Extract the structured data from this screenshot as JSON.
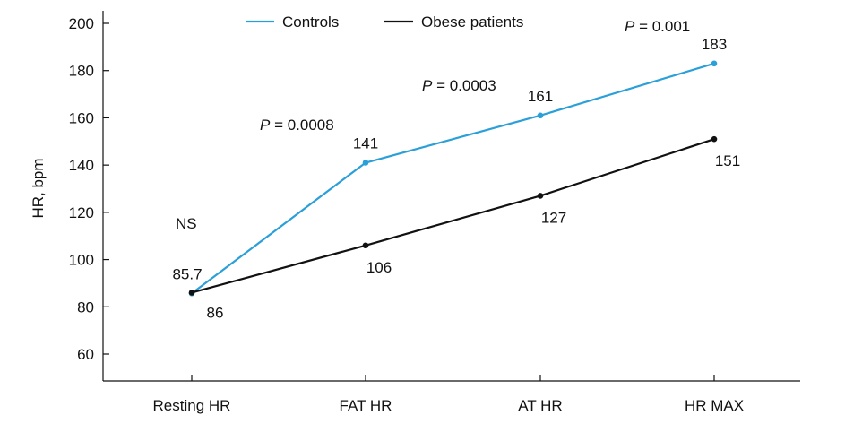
{
  "chart_data": {
    "type": "line",
    "title": "",
    "xlabel": "",
    "ylabel": "HR, bpm",
    "categories": [
      "Resting HR",
      "FAT HR",
      "AT HR",
      "HR MAX"
    ],
    "ylim": [
      50,
      205
    ],
    "yticks": [
      60,
      80,
      100,
      120,
      140,
      160,
      180,
      200
    ],
    "grid": false,
    "legend_position": "top",
    "series": [
      {
        "name": "Controls",
        "color": "#2a9fd8",
        "values": [
          85.7,
          141,
          161,
          183
        ],
        "labels": [
          "85.7",
          "141",
          "161",
          "183"
        ]
      },
      {
        "name": "Obese patients",
        "color": "#111111",
        "values": [
          86,
          106,
          127,
          151
        ],
        "labels": [
          "86",
          "106",
          "127",
          "151"
        ]
      }
    ],
    "annotations": [
      {
        "category": "Resting HR",
        "prefix": "",
        "text": "NS"
      },
      {
        "category": "FAT HR",
        "prefix": "P",
        "text": " = 0.0008"
      },
      {
        "category": "AT HR",
        "prefix": "P",
        "text": " = 0.0003"
      },
      {
        "category": "HR MAX",
        "prefix": "P",
        "text": " = 0.001"
      }
    ]
  }
}
